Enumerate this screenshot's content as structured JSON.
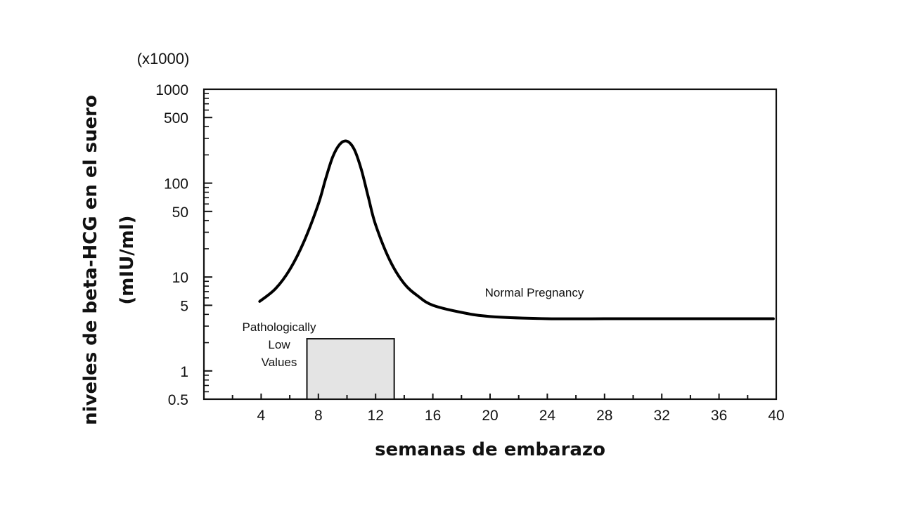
{
  "chart_data": {
    "type": "line",
    "xlabel": "semanas de embarazo",
    "ylabel": "niveles de beta-HCG en el suero",
    "ylabel_units": "(mIU/ml)",
    "y_multiplier_label": "(x1000)",
    "y_scale": "log",
    "xlim": [
      0,
      40
    ],
    "ylim": [
      0.5,
      1000
    ],
    "grid": false,
    "x_ticks": [
      4,
      8,
      12,
      16,
      20,
      24,
      28,
      32,
      36,
      40
    ],
    "y_ticks": [
      0.5,
      1,
      5,
      10,
      50,
      100,
      500,
      1000
    ],
    "series": [
      {
        "name": "Normal Pregnancy",
        "color": "#000000",
        "x": [
          3.9,
          5,
          6,
          7,
          8,
          8.5,
          9,
          9.5,
          10,
          10.5,
          11,
          11.5,
          12,
          13,
          14,
          15,
          16,
          18,
          20,
          24,
          28,
          32,
          36,
          39.8
        ],
        "y": [
          5.5,
          7.5,
          12,
          24,
          60,
          110,
          190,
          260,
          280,
          230,
          140,
          70,
          36,
          15,
          8.5,
          6.2,
          5,
          4.2,
          3.8,
          3.6,
          3.6,
          3.6,
          3.6,
          3.6
        ]
      }
    ],
    "shaded_region": {
      "label": "Pathologically Low Values",
      "x": [
        7.2,
        13.3
      ],
      "y": [
        0.5,
        2.2
      ],
      "color": "#e6e6e6"
    },
    "annotations": [
      {
        "text": "Normal Pregnancy",
        "x": 23,
        "y": 6.8
      },
      {
        "lines": [
          "Pathologically",
          "Low",
          "Values"
        ]
      }
    ]
  }
}
